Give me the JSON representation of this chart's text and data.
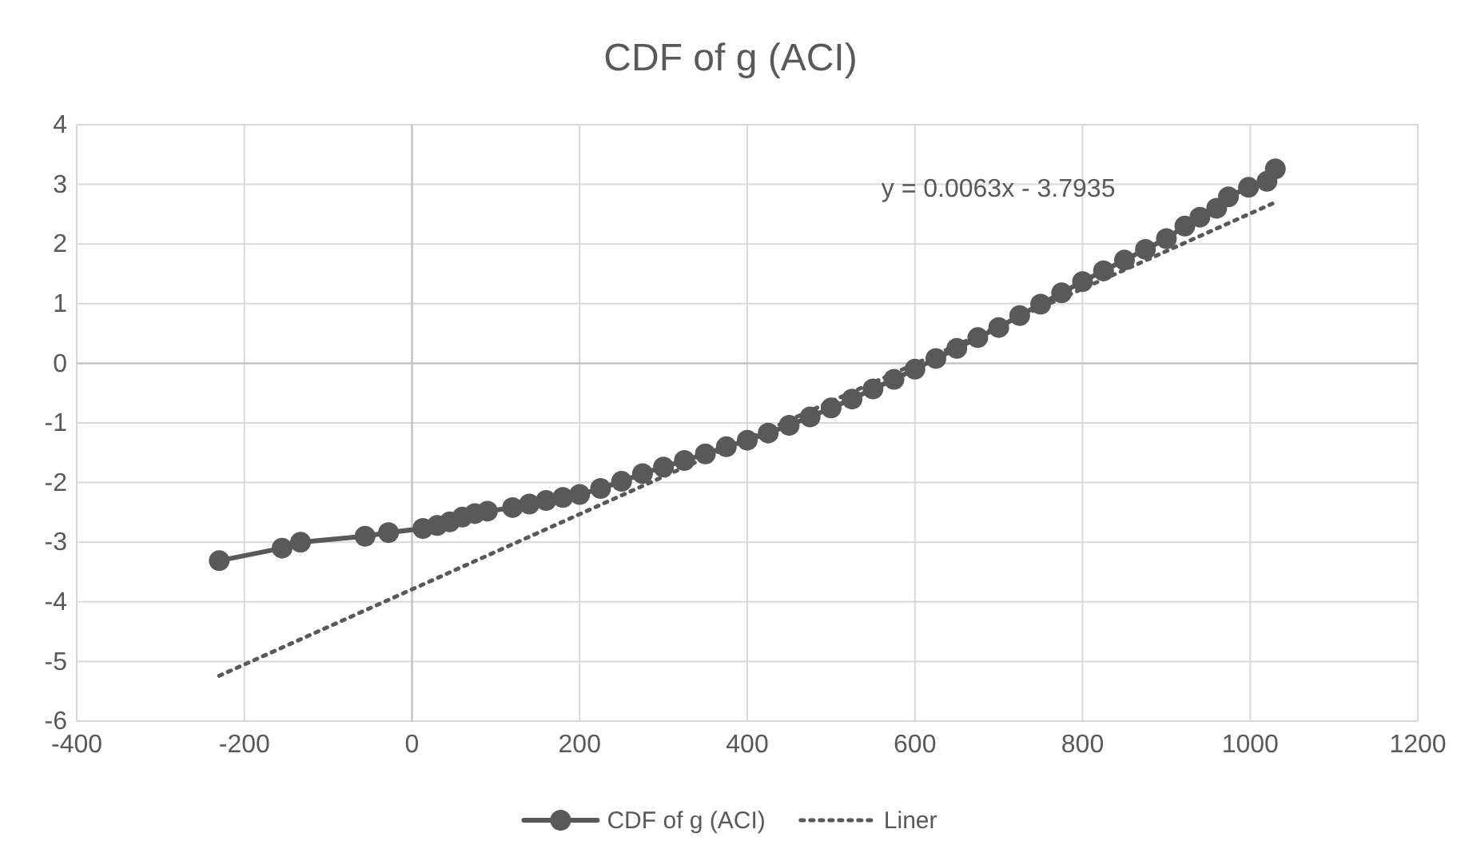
{
  "chart_data": {
    "type": "line",
    "title": "CDF of g (ACI)",
    "xlim": [
      -400,
      1200
    ],
    "xticks": [
      -400,
      -200,
      0,
      200,
      400,
      600,
      800,
      1000,
      1200
    ],
    "ylim": [
      -6,
      4
    ],
    "yticks": [
      -6,
      -5,
      -4,
      -3,
      -2,
      -1,
      0,
      1,
      2,
      3,
      4
    ],
    "grid": true,
    "legend": "bottom",
    "annotations": [
      "y = 0.0063x - 3.7935"
    ],
    "series": [
      {
        "name": "CDF of g (ACI)",
        "color": "#595959",
        "marker": "circle",
        "line_style": "solid",
        "x": [
          -230,
          -155,
          -133,
          -56,
          -28,
          13,
          30,
          45,
          60,
          75,
          90,
          120,
          140,
          160,
          180,
          200,
          225,
          250,
          275,
          300,
          325,
          350,
          375,
          400,
          425,
          450,
          475,
          500,
          525,
          550,
          575,
          600,
          625,
          650,
          675,
          700,
          725,
          750,
          775,
          800,
          825,
          850,
          875,
          900,
          922,
          940,
          960,
          974,
          998,
          1020,
          1030
        ],
        "values": [
          -3.31,
          -3.1,
          -3.0,
          -2.9,
          -2.84,
          -2.77,
          -2.72,
          -2.66,
          -2.58,
          -2.52,
          -2.48,
          -2.42,
          -2.36,
          -2.3,
          -2.25,
          -2.2,
          -2.1,
          -1.98,
          -1.85,
          -1.74,
          -1.63,
          -1.52,
          -1.4,
          -1.29,
          -1.17,
          -1.04,
          -0.9,
          -0.75,
          -0.6,
          -0.43,
          -0.27,
          -0.1,
          0.08,
          0.25,
          0.43,
          0.6,
          0.8,
          0.99,
          1.18,
          1.37,
          1.55,
          1.73,
          1.91,
          2.09,
          2.3,
          2.45,
          2.6,
          2.79,
          2.95,
          3.05,
          3.26
        ]
      },
      {
        "name": "Liner",
        "color": "#595959",
        "marker": "none",
        "line_style": "dotted",
        "x": [
          -230,
          1030
        ],
        "values": [
          -5.24,
          2.7
        ]
      }
    ]
  }
}
